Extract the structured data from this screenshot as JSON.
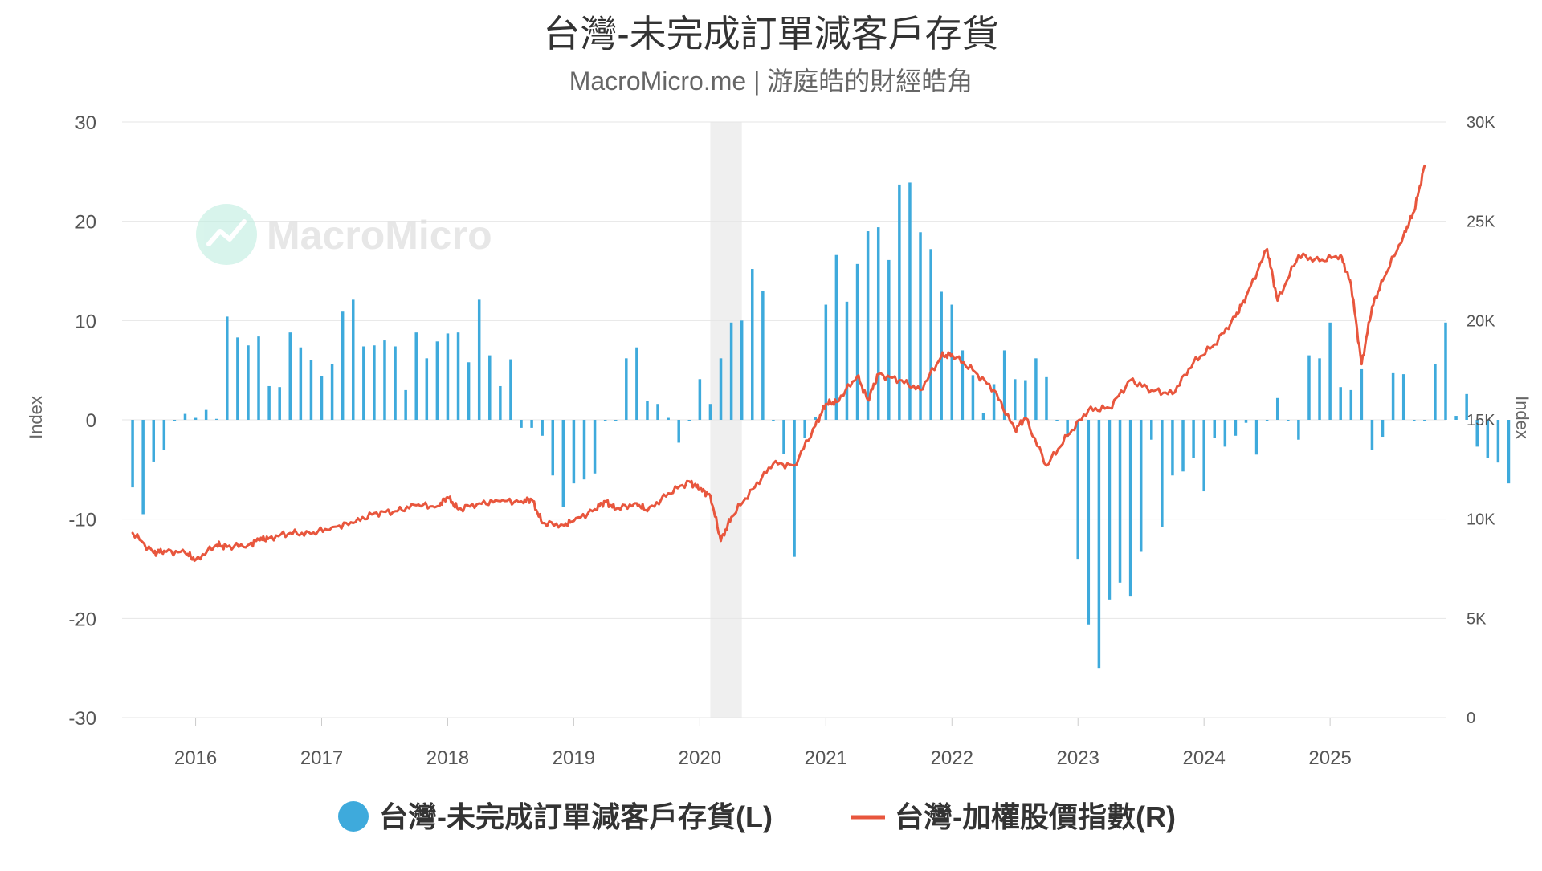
{
  "chart_data": {
    "type": "bar+line",
    "title": "台灣-未完成訂單減客戶存貨",
    "subtitle": "MacroMicro.me | 游庭皓的財經皓角",
    "watermark": "MacroMicro",
    "left_axis": {
      "label": "Index",
      "range": [
        -30,
        30
      ],
      "ticks": [
        30,
        20,
        10,
        0,
        -10,
        -20,
        -30
      ],
      "tick_labels": [
        "30",
        "20",
        "10",
        "0",
        "-10",
        "-20",
        "-30"
      ]
    },
    "right_axis": {
      "label": "Index",
      "range": [
        0,
        30000
      ],
      "ticks": [
        30000,
        25000,
        20000,
        15000,
        10000,
        5000,
        0
      ],
      "tick_labels": [
        "30K",
        "25K",
        "20K",
        "15K",
        "10K",
        "5K",
        "0"
      ]
    },
    "x_axis": {
      "range": [
        "2015-06",
        "2025-12"
      ],
      "tick_labels": [
        "2016",
        "2017",
        "2018",
        "2019",
        "2020",
        "2021",
        "2022",
        "2023",
        "2024",
        "2025"
      ]
    },
    "shaded_region": {
      "start": "2020-02",
      "end": "2020-05"
    },
    "grid": true,
    "legend_position": "bottom-center",
    "series": [
      {
        "name": "台灣-未完成訂單減客戶存貨(L)",
        "type": "bar",
        "axis": "left",
        "color": "#3eaadc",
        "start": "2015-07",
        "values": [
          -6.8,
          -9.5,
          -4.2,
          -3.0,
          0.0,
          0.6,
          0.2,
          1.0,
          0.1,
          10.4,
          8.3,
          7.5,
          8.4,
          3.4,
          3.3,
          8.8,
          7.3,
          6.0,
          4.4,
          5.6,
          10.9,
          12.1,
          7.4,
          7.5,
          8.0,
          7.4,
          3.0,
          8.8,
          6.2,
          7.9,
          8.7,
          8.8,
          5.8,
          12.1,
          6.5,
          3.4,
          6.1,
          -0.8,
          -0.8,
          -1.6,
          -5.6,
          -8.8,
          -6.4,
          -6.0,
          -5.4,
          0.0,
          0.0,
          6.2,
          7.3,
          1.9,
          1.6,
          0.2,
          -2.3,
          0.0,
          4.1,
          1.6,
          6.2,
          9.8,
          10.0,
          15.2,
          13.0,
          0.0,
          -3.4,
          -13.8,
          -1.8,
          0.3,
          11.6,
          16.6,
          11.9,
          15.7,
          19.0,
          19.4,
          16.1,
          23.7,
          23.9,
          18.9,
          17.2,
          12.9,
          11.6,
          7.0,
          4.5,
          0.7,
          3.6,
          7.0,
          4.1,
          4.0,
          6.2,
          4.3,
          0.0,
          -1.7,
          -14.0,
          -20.6,
          -25.0,
          -18.1,
          -16.4,
          -17.8,
          -13.3,
          -2.0,
          -10.8,
          -5.6,
          -5.2,
          -3.8,
          -7.2,
          -1.8,
          -2.7,
          -1.6,
          -0.3,
          -3.5,
          0.0,
          2.2,
          0.0,
          -2.0,
          6.5,
          6.2,
          9.8,
          3.3,
          3.0,
          5.1,
          -3.0,
          -1.7,
          4.7,
          4.6,
          0.0,
          0.0,
          5.6,
          9.8,
          0.4,
          2.6,
          -2.7,
          -3.8,
          -4.3,
          -6.4
        ]
      },
      {
        "name": "台灣-加權股價指數(R)",
        "type": "line",
        "axis": "right",
        "color": "#e8563d",
        "points": [
          [
            "2015-07",
            9300
          ],
          [
            "2015-09",
            8300
          ],
          [
            "2015-10",
            8400
          ],
          [
            "2015-12",
            8300
          ],
          [
            "2016-01",
            7950
          ],
          [
            "2016-03",
            8700
          ],
          [
            "2016-04",
            8600
          ],
          [
            "2016-06",
            8700
          ],
          [
            "2016-07",
            8950
          ],
          [
            "2016-08",
            9050
          ],
          [
            "2016-10",
            9300
          ],
          [
            "2016-12",
            9250
          ],
          [
            "2017-02",
            9600
          ],
          [
            "2017-04",
            9800
          ],
          [
            "2017-06",
            10300
          ],
          [
            "2017-08",
            10400
          ],
          [
            "2017-10",
            10700
          ],
          [
            "2017-12",
            10650
          ],
          [
            "2018-01",
            11100
          ],
          [
            "2018-02",
            10500
          ],
          [
            "2018-04",
            10800
          ],
          [
            "2018-06",
            10900
          ],
          [
            "2018-08",
            10900
          ],
          [
            "2018-09",
            11000
          ],
          [
            "2018-10",
            9800
          ],
          [
            "2018-12",
            9700
          ],
          [
            "2019-01",
            9900
          ],
          [
            "2019-03",
            10500
          ],
          [
            "2019-04",
            10900
          ],
          [
            "2019-05",
            10500
          ],
          [
            "2019-07",
            10800
          ],
          [
            "2019-08",
            10400
          ],
          [
            "2019-10",
            11300
          ],
          [
            "2019-12",
            11900
          ],
          [
            "2020-01",
            11500
          ],
          [
            "2020-02",
            11200
          ],
          [
            "2020-03",
            8900
          ],
          [
            "2020-04",
            10100
          ],
          [
            "2020-06",
            11500
          ],
          [
            "2020-08",
            12800
          ],
          [
            "2020-10",
            12700
          ],
          [
            "2020-12",
            14700
          ],
          [
            "2021-01",
            15800
          ],
          [
            "2021-02",
            15900
          ],
          [
            "2021-04",
            17200
          ],
          [
            "2021-05",
            16000
          ],
          [
            "2021-06",
            17300
          ],
          [
            "2021-08",
            17000
          ],
          [
            "2021-10",
            16500
          ],
          [
            "2021-12",
            18200
          ],
          [
            "2022-01",
            18300
          ],
          [
            "2022-03",
            17500
          ],
          [
            "2022-05",
            16500
          ],
          [
            "2022-07",
            14500
          ],
          [
            "2022-08",
            15100
          ],
          [
            "2022-10",
            12700
          ],
          [
            "2022-12",
            14200
          ],
          [
            "2023-02",
            15500
          ],
          [
            "2023-04",
            15600
          ],
          [
            "2023-06",
            17000
          ],
          [
            "2023-08",
            16500
          ],
          [
            "2023-10",
            16300
          ],
          [
            "2023-12",
            17900
          ],
          [
            "2024-02",
            18800
          ],
          [
            "2024-04",
            20200
          ],
          [
            "2024-05",
            21200
          ],
          [
            "2024-07",
            23600
          ],
          [
            "2024-08",
            21000
          ],
          [
            "2024-10",
            23300
          ],
          [
            "2024-12",
            23000
          ],
          [
            "2025-02",
            23300
          ],
          [
            "2025-03",
            21800
          ],
          [
            "2025-04",
            17800
          ],
          [
            "2025-05",
            20700
          ],
          [
            "2025-06",
            22000
          ],
          [
            "2025-08",
            24300
          ],
          [
            "2025-09",
            25500
          ],
          [
            "2025-10",
            27800
          ]
        ]
      }
    ]
  }
}
